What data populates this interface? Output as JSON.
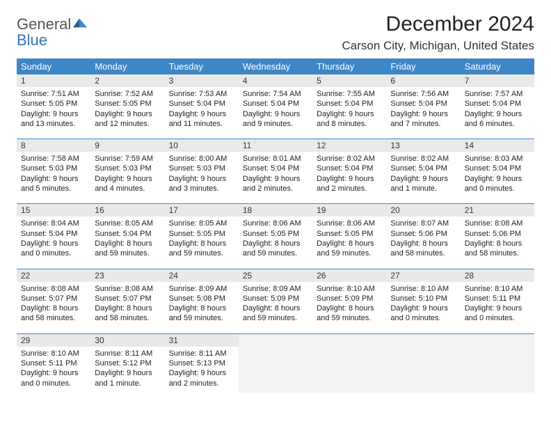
{
  "logo": {
    "line1": "General",
    "line2": "Blue"
  },
  "title": "December 2024",
  "location": "Carson City, Michigan, United States",
  "colors": {
    "header_bg": "#3f86c6",
    "daynum_bg": "#e9e9e9",
    "empty_bg": "#f2f2f2",
    "rule": "#3f86c6",
    "logo_blue": "#2f77b5"
  },
  "weekdays": [
    "Sunday",
    "Monday",
    "Tuesday",
    "Wednesday",
    "Thursday",
    "Friday",
    "Saturday"
  ],
  "weeks": [
    [
      {
        "n": "1",
        "sr": "Sunrise: 7:51 AM",
        "ss": "Sunset: 5:05 PM",
        "dl": "Daylight: 9 hours and 13 minutes."
      },
      {
        "n": "2",
        "sr": "Sunrise: 7:52 AM",
        "ss": "Sunset: 5:05 PM",
        "dl": "Daylight: 9 hours and 12 minutes."
      },
      {
        "n": "3",
        "sr": "Sunrise: 7:53 AM",
        "ss": "Sunset: 5:04 PM",
        "dl": "Daylight: 9 hours and 11 minutes."
      },
      {
        "n": "4",
        "sr": "Sunrise: 7:54 AM",
        "ss": "Sunset: 5:04 PM",
        "dl": "Daylight: 9 hours and 9 minutes."
      },
      {
        "n": "5",
        "sr": "Sunrise: 7:55 AM",
        "ss": "Sunset: 5:04 PM",
        "dl": "Daylight: 9 hours and 8 minutes."
      },
      {
        "n": "6",
        "sr": "Sunrise: 7:56 AM",
        "ss": "Sunset: 5:04 PM",
        "dl": "Daylight: 9 hours and 7 minutes."
      },
      {
        "n": "7",
        "sr": "Sunrise: 7:57 AM",
        "ss": "Sunset: 5:04 PM",
        "dl": "Daylight: 9 hours and 6 minutes."
      }
    ],
    [
      {
        "n": "8",
        "sr": "Sunrise: 7:58 AM",
        "ss": "Sunset: 5:03 PM",
        "dl": "Daylight: 9 hours and 5 minutes."
      },
      {
        "n": "9",
        "sr": "Sunrise: 7:59 AM",
        "ss": "Sunset: 5:03 PM",
        "dl": "Daylight: 9 hours and 4 minutes."
      },
      {
        "n": "10",
        "sr": "Sunrise: 8:00 AM",
        "ss": "Sunset: 5:03 PM",
        "dl": "Daylight: 9 hours and 3 minutes."
      },
      {
        "n": "11",
        "sr": "Sunrise: 8:01 AM",
        "ss": "Sunset: 5:04 PM",
        "dl": "Daylight: 9 hours and 2 minutes."
      },
      {
        "n": "12",
        "sr": "Sunrise: 8:02 AM",
        "ss": "Sunset: 5:04 PM",
        "dl": "Daylight: 9 hours and 2 minutes."
      },
      {
        "n": "13",
        "sr": "Sunrise: 8:02 AM",
        "ss": "Sunset: 5:04 PM",
        "dl": "Daylight: 9 hours and 1 minute."
      },
      {
        "n": "14",
        "sr": "Sunrise: 8:03 AM",
        "ss": "Sunset: 5:04 PM",
        "dl": "Daylight: 9 hours and 0 minutes."
      }
    ],
    [
      {
        "n": "15",
        "sr": "Sunrise: 8:04 AM",
        "ss": "Sunset: 5:04 PM",
        "dl": "Daylight: 9 hours and 0 minutes."
      },
      {
        "n": "16",
        "sr": "Sunrise: 8:05 AM",
        "ss": "Sunset: 5:04 PM",
        "dl": "Daylight: 8 hours and 59 minutes."
      },
      {
        "n": "17",
        "sr": "Sunrise: 8:05 AM",
        "ss": "Sunset: 5:05 PM",
        "dl": "Daylight: 8 hours and 59 minutes."
      },
      {
        "n": "18",
        "sr": "Sunrise: 8:06 AM",
        "ss": "Sunset: 5:05 PM",
        "dl": "Daylight: 8 hours and 59 minutes."
      },
      {
        "n": "19",
        "sr": "Sunrise: 8:06 AM",
        "ss": "Sunset: 5:05 PM",
        "dl": "Daylight: 8 hours and 59 minutes."
      },
      {
        "n": "20",
        "sr": "Sunrise: 8:07 AM",
        "ss": "Sunset: 5:06 PM",
        "dl": "Daylight: 8 hours and 58 minutes."
      },
      {
        "n": "21",
        "sr": "Sunrise: 8:08 AM",
        "ss": "Sunset: 5:06 PM",
        "dl": "Daylight: 8 hours and 58 minutes."
      }
    ],
    [
      {
        "n": "22",
        "sr": "Sunrise: 8:08 AM",
        "ss": "Sunset: 5:07 PM",
        "dl": "Daylight: 8 hours and 58 minutes."
      },
      {
        "n": "23",
        "sr": "Sunrise: 8:08 AM",
        "ss": "Sunset: 5:07 PM",
        "dl": "Daylight: 8 hours and 58 minutes."
      },
      {
        "n": "24",
        "sr": "Sunrise: 8:09 AM",
        "ss": "Sunset: 5:08 PM",
        "dl": "Daylight: 8 hours and 59 minutes."
      },
      {
        "n": "25",
        "sr": "Sunrise: 8:09 AM",
        "ss": "Sunset: 5:09 PM",
        "dl": "Daylight: 8 hours and 59 minutes."
      },
      {
        "n": "26",
        "sr": "Sunrise: 8:10 AM",
        "ss": "Sunset: 5:09 PM",
        "dl": "Daylight: 8 hours and 59 minutes."
      },
      {
        "n": "27",
        "sr": "Sunrise: 8:10 AM",
        "ss": "Sunset: 5:10 PM",
        "dl": "Daylight: 9 hours and 0 minutes."
      },
      {
        "n": "28",
        "sr": "Sunrise: 8:10 AM",
        "ss": "Sunset: 5:11 PM",
        "dl": "Daylight: 9 hours and 0 minutes."
      }
    ],
    [
      {
        "n": "29",
        "sr": "Sunrise: 8:10 AM",
        "ss": "Sunset: 5:11 PM",
        "dl": "Daylight: 9 hours and 0 minutes."
      },
      {
        "n": "30",
        "sr": "Sunrise: 8:11 AM",
        "ss": "Sunset: 5:12 PM",
        "dl": "Daylight: 9 hours and 1 minute."
      },
      {
        "n": "31",
        "sr": "Sunrise: 8:11 AM",
        "ss": "Sunset: 5:13 PM",
        "dl": "Daylight: 9 hours and 2 minutes."
      },
      {
        "empty": true
      },
      {
        "empty": true
      },
      {
        "empty": true
      },
      {
        "empty": true
      }
    ]
  ]
}
